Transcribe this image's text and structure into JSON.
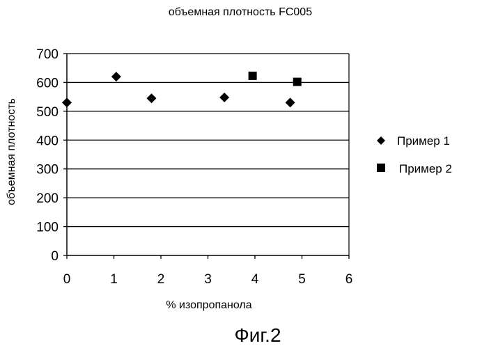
{
  "chart_data": {
    "type": "scatter",
    "title": "объемная плотность FC005",
    "xlabel": "% изопропанола",
    "ylabel": "объемная плотность",
    "xlim": [
      0,
      6
    ],
    "ylim": [
      0,
      700
    ],
    "x_ticks": [
      "0",
      "1",
      "2",
      "3",
      "4",
      "5",
      "6"
    ],
    "y_ticks": [
      "0",
      "100",
      "200",
      "300",
      "400",
      "500",
      "600",
      "700"
    ],
    "grid": "horizontal",
    "legend_position": "right",
    "series": [
      {
        "name": "Пример 1",
        "marker": "diamond",
        "color": "#000000",
        "points": [
          {
            "x": 0,
            "y": 530
          },
          {
            "x": 1.05,
            "y": 620
          },
          {
            "x": 1.8,
            "y": 545
          },
          {
            "x": 3.35,
            "y": 548
          },
          {
            "x": 4.75,
            "y": 530
          }
        ]
      },
      {
        "name": "Пример 2",
        "marker": "square",
        "color": "#000000",
        "points": [
          {
            "x": 3.95,
            "y": 623
          },
          {
            "x": 4.9,
            "y": 602
          }
        ]
      }
    ]
  },
  "figure_caption": "Фиг.2"
}
